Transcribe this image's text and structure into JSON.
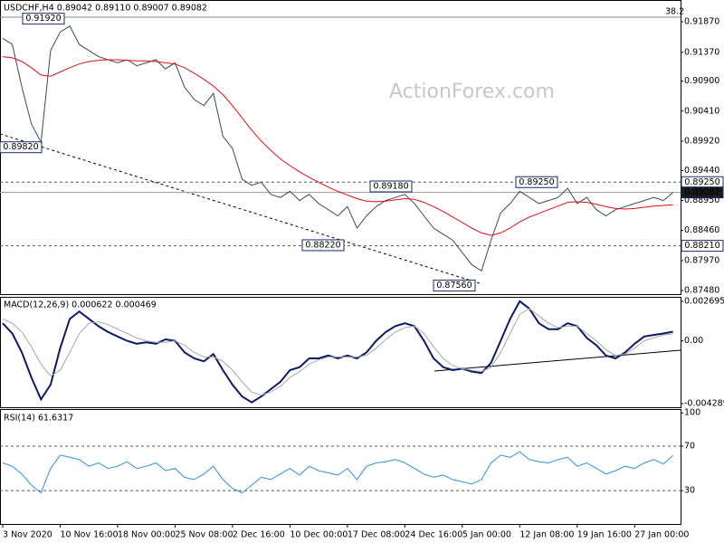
{
  "chart_data": [
    {
      "type": "line",
      "title": "USDCHF,H4  0.89042 0.89110 0.89007 0.89082",
      "ylim": [
        0.87421,
        0.92166
      ],
      "yticks": [
        {
          "value": 0.9187,
          "label": "0.91870"
        },
        {
          "value": 0.9137,
          "label": "0.91370"
        },
        {
          "value": 0.909,
          "label": "0.90900"
        },
        {
          "value": 0.9041,
          "label": "0.90410"
        },
        {
          "value": 0.8992,
          "label": "0.89920"
        },
        {
          "value": 0.8944,
          "label": "0.89440"
        },
        {
          "value": 0.8895,
          "label": "0.88950"
        },
        {
          "value": 0.8846,
          "label": "0.88460"
        },
        {
          "value": 0.8797,
          "label": "0.87970"
        },
        {
          "value": 0.8748,
          "label": "0.87480"
        }
      ],
      "series": [
        {
          "color": "#3c4a5c",
          "values": [
            0.916,
            0.915,
            0.908,
            0.902,
            0.899,
            0.914,
            0.917,
            0.918,
            0.915,
            0.914,
            0.913,
            0.9125,
            0.912,
            0.9125,
            0.9115,
            0.912,
            0.9125,
            0.911,
            0.912,
            0.908,
            0.906,
            0.905,
            0.907,
            0.9,
            0.898,
            0.893,
            0.892,
            0.8925,
            0.8905,
            0.89,
            0.891,
            0.8895,
            0.8905,
            0.889,
            0.888,
            0.887,
            0.8885,
            0.885,
            0.887,
            0.8885,
            0.8895,
            0.89,
            0.8905,
            0.889,
            0.887,
            0.885,
            0.884,
            0.883,
            0.881,
            0.879,
            0.878,
            0.883,
            0.8875,
            0.889,
            0.891,
            0.89,
            0.889,
            0.8895,
            0.89,
            0.8915,
            0.889,
            0.89,
            0.888,
            0.887,
            0.888,
            0.8885,
            0.889,
            0.8895,
            0.89,
            0.8895,
            0.8908
          ]
        },
        {
          "color": "#e01010",
          "values": [
            0.913,
            0.9128,
            0.9122,
            0.9112,
            0.91,
            0.9098,
            0.9105,
            0.9112,
            0.9118,
            0.9122,
            0.9124,
            0.9125,
            0.9125,
            0.9124,
            0.9123,
            0.9123,
            0.9122,
            0.912,
            0.9118,
            0.9112,
            0.9103,
            0.9093,
            0.9082,
            0.9068,
            0.905,
            0.903,
            0.901,
            0.8992,
            0.8977,
            0.8963,
            0.8952,
            0.8942,
            0.8933,
            0.8925,
            0.8917,
            0.891,
            0.8904,
            0.8898,
            0.8894,
            0.8893,
            0.8894,
            0.8896,
            0.8898,
            0.8897,
            0.8892,
            0.8885,
            0.8877,
            0.8868,
            0.8859,
            0.885,
            0.8842,
            0.8838,
            0.8842,
            0.885,
            0.886,
            0.8868,
            0.8874,
            0.888,
            0.8886,
            0.8892,
            0.8893,
            0.8892,
            0.8889,
            0.8885,
            0.8882,
            0.8881,
            0.8882,
            0.8884,
            0.8886,
            0.8887,
            0.8888
          ]
        }
      ],
      "levels": [
        {
          "value": 0.8925,
          "label": "0.89250"
        },
        {
          "value": 0.8821,
          "label": "0.88210"
        }
      ],
      "current": {
        "value": 0.89082,
        "label": "0.89082"
      },
      "annotations": [
        {
          "value": 0.9192,
          "label": "0.91920"
        },
        {
          "value": 0.8982,
          "label": "0.89820"
        },
        {
          "value": 0.8822,
          "label": "0.88220"
        },
        {
          "value": 0.8918,
          "label": "0.89180"
        },
        {
          "value": 0.8925,
          "label": "0.89250"
        },
        {
          "value": 0.8756,
          "label": "0.87560"
        }
      ],
      "fib_label": "38.2",
      "watermark": "ActionForex.com"
    },
    {
      "type": "line",
      "title": "MACD(12,26,9) 0.000622 0.000469",
      "ylim": [
        -0.004289,
        0.002695
      ],
      "yticks": [
        0.002695,
        {
          "value": 0,
          "label": "0.00"
        },
        -0.004289
      ],
      "series": [
        {
          "color": "#0b1a6b",
          "values": [
            0.0012,
            0.0005,
            -0.0008,
            -0.0025,
            -0.004,
            -0.003,
            -0.0005,
            0.0015,
            0.002,
            0.0015,
            0.001,
            0.0006,
            0.0003,
            0,
            -0.0002,
            -0.0001,
            -0.0002,
            0.0001,
            0,
            -0.0008,
            -0.0012,
            -0.0014,
            -0.0009,
            -0.002,
            -0.003,
            -0.0038,
            -0.0042,
            -0.0038,
            -0.0033,
            -0.0028,
            -0.002,
            -0.0018,
            -0.0012,
            -0.0012,
            -0.001,
            -0.0012,
            -0.001,
            -0.0012,
            -0.0008,
            0,
            0.0006,
            0.001,
            0.0012,
            0.001,
            0,
            -0.0012,
            -0.0018,
            -0.002,
            -0.0019,
            -0.0021,
            -0.0022,
            -0.0015,
            0,
            0.0015,
            0.0027,
            0.0022,
            0.0012,
            0.0008,
            0.0008,
            0.0012,
            0.001,
            0.0002,
            -0.0003,
            -0.001,
            -0.0012,
            -0.0008,
            -0.0002,
            0.0003,
            0.0004,
            0.0005,
            0.000622
          ]
        },
        {
          "color": "#a8a8a8",
          "values": [
            0.0015,
            0.0012,
            0.0006,
            -0.0004,
            -0.0016,
            -0.0024,
            -0.002,
            -0.0008,
            0.0005,
            0.0012,
            0.0013,
            0.0011,
            0.0008,
            0.0005,
            0.0002,
            0,
            -0.0001,
            -0.0001,
            0,
            -0.0003,
            -0.0008,
            -0.0011,
            -0.0011,
            -0.0014,
            -0.002,
            -0.0028,
            -0.0035,
            -0.0037,
            -0.0035,
            -0.0031,
            -0.0025,
            -0.0021,
            -0.0016,
            -0.0013,
            -0.0011,
            -0.0011,
            -0.0011,
            -0.0011,
            -0.001,
            -0.0005,
            0.0001,
            0.0006,
            0.0009,
            0.001,
            0.0005,
            -0.0004,
            -0.0012,
            -0.0017,
            -0.0019,
            -0.002,
            -0.0021,
            -0.0018,
            -0.0008,
            0.0005,
            0.0018,
            0.0022,
            0.0017,
            0.0012,
            0.0009,
            0.001,
            0.001,
            0.0005,
            0,
            -0.0006,
            -0.001,
            -0.0009,
            -0.0005,
            0,
            0.0002,
            0.0004,
            0.000469
          ]
        }
      ]
    },
    {
      "type": "line",
      "title": "RSI(14) 61.6317",
      "ylim": [
        0,
        101
      ],
      "yticks": [
        100,
        70,
        30
      ],
      "levels": [
        70,
        30
      ],
      "series": [
        {
          "color": "#2f8fdc",
          "values": [
            55,
            52,
            45,
            35,
            28,
            50,
            62,
            60,
            58,
            52,
            55,
            50,
            52,
            56,
            50,
            52,
            55,
            48,
            50,
            42,
            40,
            45,
            52,
            40,
            32,
            28,
            35,
            42,
            40,
            45,
            50,
            44,
            52,
            48,
            46,
            44,
            50,
            40,
            52,
            55,
            56,
            58,
            55,
            50,
            45,
            42,
            44,
            40,
            38,
            36,
            40,
            55,
            62,
            60,
            65,
            58,
            56,
            55,
            58,
            60,
            52,
            55,
            50,
            45,
            48,
            52,
            50,
            55,
            58,
            54,
            61.6317
          ]
        }
      ],
      "categories": [
        "3 Nov 2020",
        null,
        null,
        null,
        null,
        null,
        "10 Nov 16:00",
        null,
        null,
        null,
        null,
        null,
        "18 Nov 00:00",
        null,
        null,
        null,
        null,
        null,
        "25 Nov 08:00",
        null,
        null,
        null,
        null,
        null,
        "2 Dec 16:00",
        null,
        null,
        null,
        null,
        null,
        "10 Dec 00:00",
        null,
        null,
        null,
        null,
        null,
        "17 Dec 08:00",
        null,
        null,
        null,
        null,
        null,
        "24 Dec 16:00",
        null,
        null,
        null,
        null,
        null,
        "5 Jan 00:00",
        null,
        null,
        null,
        null,
        null,
        "12 Jan 08:00",
        null,
        null,
        null,
        null,
        null,
        "19 Jan 16:00",
        null,
        null,
        null,
        null,
        null,
        "27 Jan 00:00",
        null,
        null,
        null,
        null
      ]
    }
  ]
}
